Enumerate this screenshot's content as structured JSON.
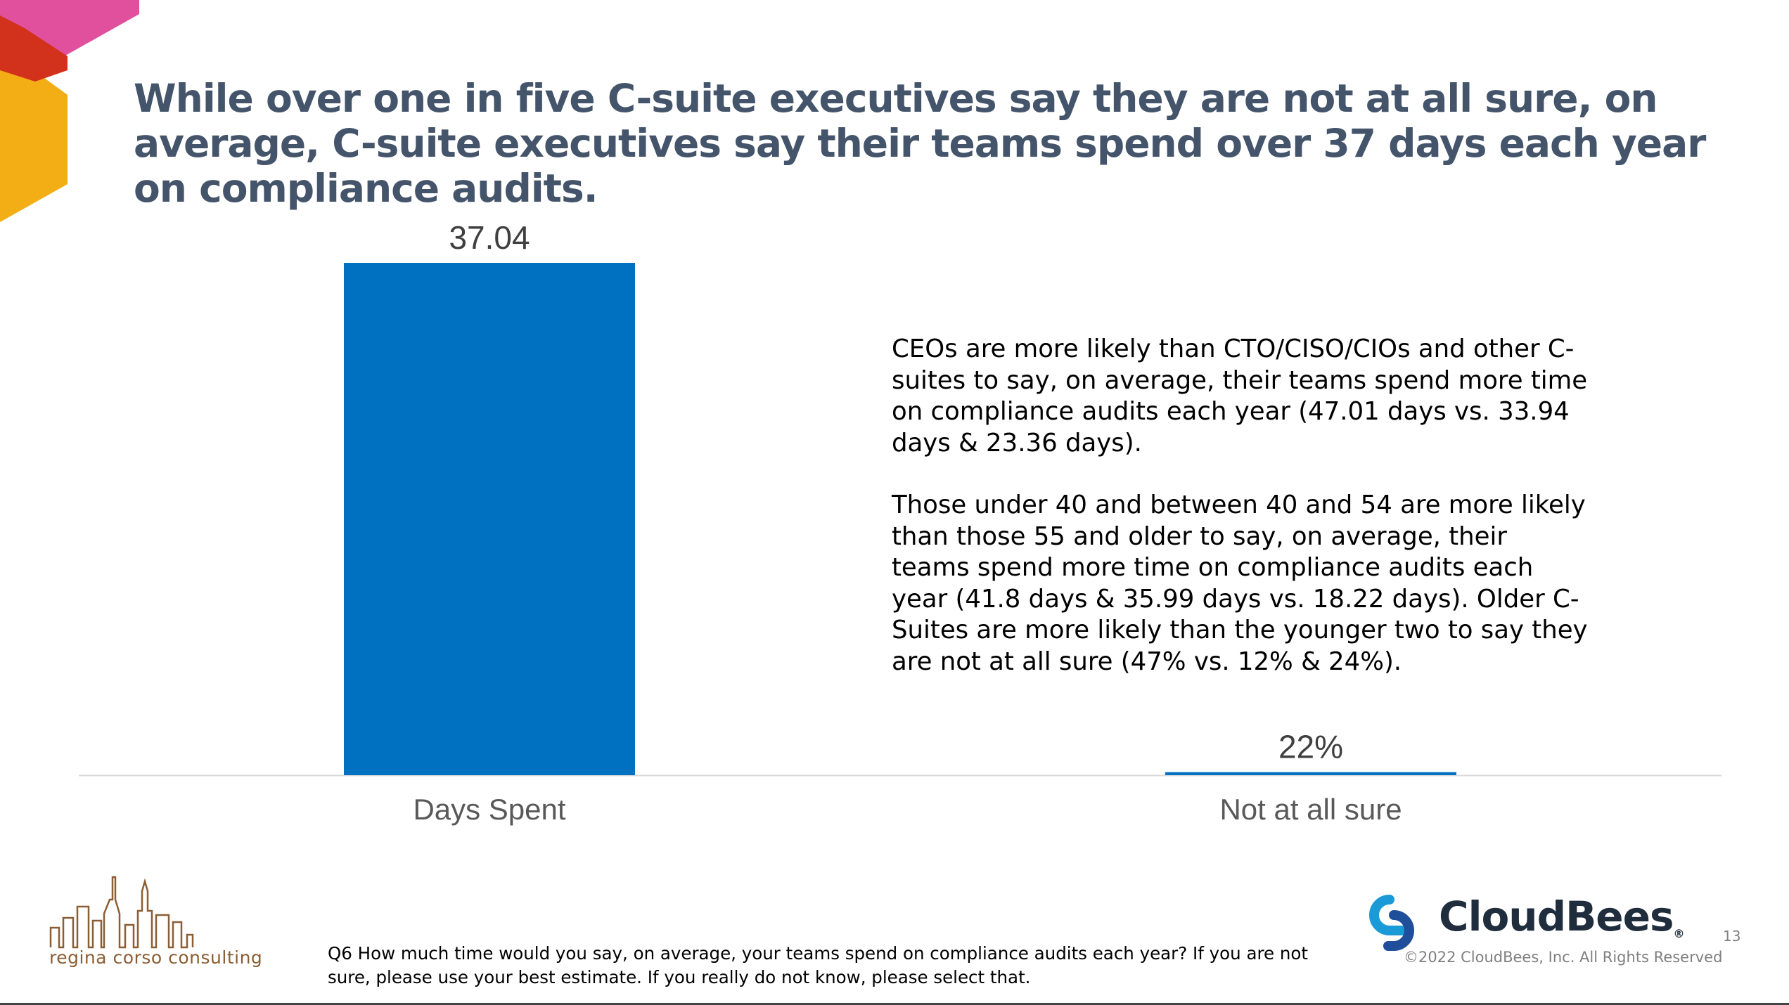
{
  "title": "While over one in five C-suite executives say they are not at all sure, on average, C-suite executives say their teams spend over 37 days each year on compliance audits.",
  "chart_data": {
    "type": "bar",
    "categories": [
      "Days Spent",
      "Not at all sure"
    ],
    "values": [
      37.04,
      0.22
    ],
    "labels": [
      "37.04",
      "22%"
    ],
    "ylim": [
      0,
      37.04
    ],
    "bar_color": "#0070C0",
    "title": "",
    "xlabel": "",
    "ylabel": ""
  },
  "notes": [
    "CEOs are more likely than CTO/CISO/CIOs and other C-suites to say, on average, their teams spend more time on compliance audits each year (47.01 days vs. 33.94 days & 23.36 days).",
    "Those under 40 and between 40 and 54 are more likely than those 55 and older to say, on average, their teams spend more time on compliance audits each year (41.8 days & 35.99 days vs. 18.22 days). Older C-Suites are more likely than the younger two to say they are not at all sure (47% vs. 12% & 24%)."
  ],
  "question": "Q6 How much time would you say, on average, your teams spend on compliance audits each year? If you are not sure, please use your best estimate. If you really do not know, please select that.",
  "footer": {
    "consultant_name": "regina corso consulting",
    "brand_name": "CloudBees",
    "brand_mark": "®",
    "copyright": "©2022 CloudBees, Inc. All Rights Reserved",
    "page_number": "13"
  },
  "colors": {
    "title": "#44546A",
    "bar": "#0070C0",
    "accent_pink": "#E0509C",
    "accent_red": "#D2311B",
    "accent_yellow": "#F2AE14",
    "brand_blue": "#1A9BD7",
    "brand_dark": "#1F2D3D",
    "consultant": "#8B5E34"
  }
}
